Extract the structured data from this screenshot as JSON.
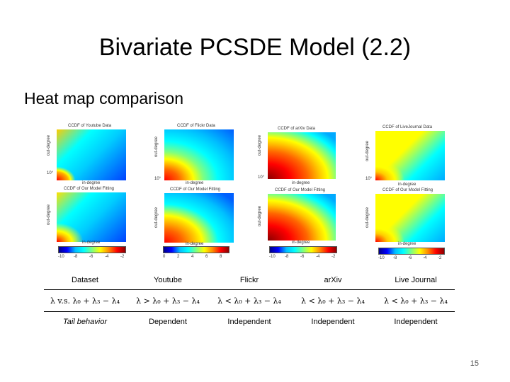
{
  "slide": {
    "title": "Bivariate PCSDE Model (2.2)",
    "subtitle": "Heat map comparison",
    "page_number": "15"
  },
  "panels": {
    "youtube_top_title": "CCDF of Youtube Data",
    "youtube_bottom_title": "CCDF of Our Model Fitting",
    "flickr_top_title": "CCDF of Flickr Data",
    "flickr_bottom_title": "CCDF of Our Model Fitting",
    "arxiv_top_title": "CCDF of arXiv Data",
    "arxiv_bottom_title": "CCDF of Our Model Fitting",
    "lj_top_title": "CCDF of LiveJournal Data",
    "lj_bottom_title": "CCDF of Our Model Fitting",
    "xlabel": "in-degree",
    "ylabel": "out-degree",
    "tick_1": "10°",
    "colorbar_ticks_a": [
      "-10",
      "-8",
      "-6",
      "-4",
      "-2"
    ],
    "colorbar_ticks_b": [
      "0",
      "2",
      "4",
      "6",
      "8"
    ]
  },
  "table": {
    "header": [
      "Dataset",
      "Youtube",
      "Flickr",
      "arXiv",
      "Live Journal"
    ],
    "formula_row": [
      "λ v.s. λ₀ + λ₃ − λ₄",
      "λ > λ₀ + λ₃ − λ₄",
      "λ < λ₀ + λ₃ − λ₄",
      "λ < λ₀ + λ₃ − λ₄",
      "λ < λ₀ + λ₃ − λ₄"
    ],
    "behavior_row": [
      "Tail behavior",
      "Dependent",
      "Independent",
      "Independent",
      "Independent"
    ]
  },
  "colors": {
    "heat_red": "#ff0000",
    "heat_yellow": "#ffff00",
    "heat_cyan": "#00ffff",
    "heat_blue": "#0000ff"
  }
}
